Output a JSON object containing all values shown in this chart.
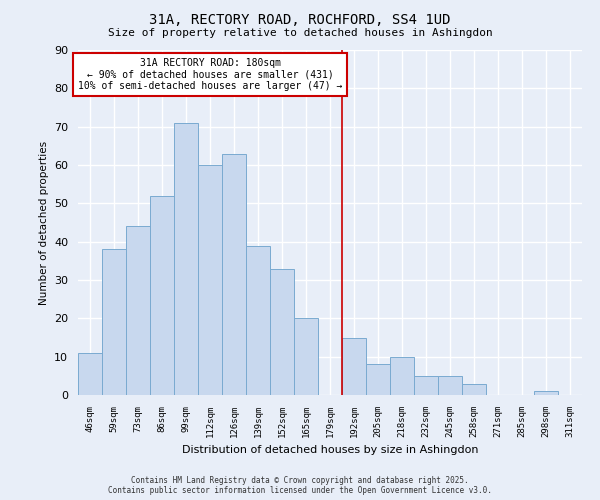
{
  "title": "31A, RECTORY ROAD, ROCHFORD, SS4 1UD",
  "subtitle": "Size of property relative to detached houses in Ashingdon",
  "xlabel": "Distribution of detached houses by size in Ashingdon",
  "ylabel": "Number of detached properties",
  "bin_labels": [
    "46sqm",
    "59sqm",
    "73sqm",
    "86sqm",
    "99sqm",
    "112sqm",
    "126sqm",
    "139sqm",
    "152sqm",
    "165sqm",
    "179sqm",
    "192sqm",
    "205sqm",
    "218sqm",
    "232sqm",
    "245sqm",
    "258sqm",
    "271sqm",
    "285sqm",
    "298sqm",
    "311sqm"
  ],
  "bar_heights": [
    11,
    38,
    44,
    52,
    71,
    60,
    63,
    39,
    33,
    20,
    0,
    15,
    8,
    10,
    5,
    5,
    3,
    0,
    0,
    1,
    0
  ],
  "bar_color": "#c8d8ee",
  "bar_edge_color": "#7aaad0",
  "vline_x": 10.5,
  "vline_color": "#cc0000",
  "annotation_text": "31A RECTORY ROAD: 180sqm\n← 90% of detached houses are smaller (431)\n10% of semi-detached houses are larger (47) →",
  "annotation_box_color": "#ffffff",
  "annotation_box_edge_color": "#cc0000",
  "ylim": [
    0,
    90
  ],
  "yticks": [
    0,
    10,
    20,
    30,
    40,
    50,
    60,
    70,
    80,
    90
  ],
  "background_color": "#e8eef8",
  "grid_color": "#ffffff",
  "title_fontsize": 10,
  "subtitle_fontsize": 8,
  "footer_line1": "Contains HM Land Registry data © Crown copyright and database right 2025.",
  "footer_line2": "Contains public sector information licensed under the Open Government Licence v3.0."
}
